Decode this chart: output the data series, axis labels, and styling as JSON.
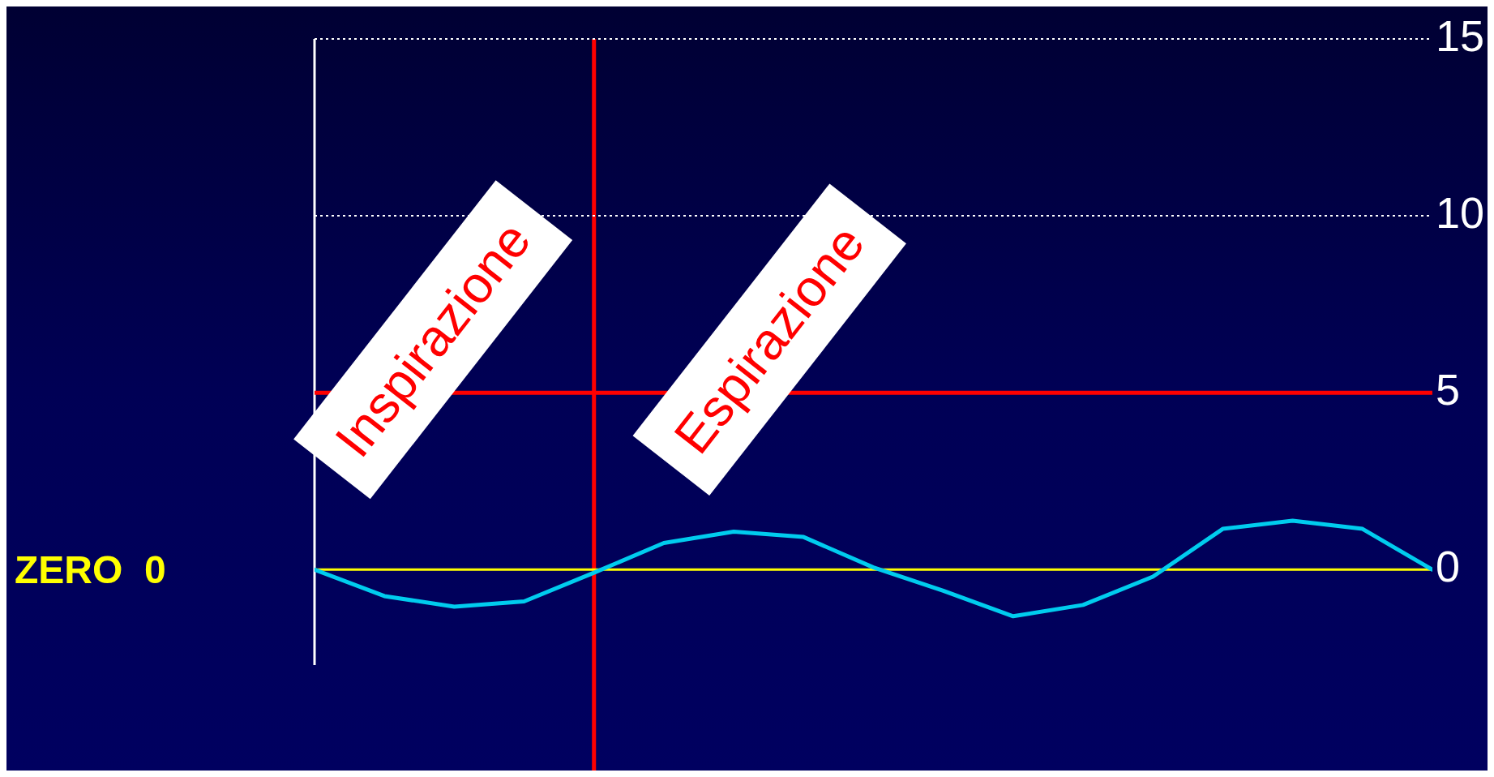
{
  "chart_data": {
    "type": "line",
    "categories": [
      null,
      null,
      null,
      null,
      null,
      null,
      null,
      null,
      null,
      null,
      null,
      null,
      null,
      null,
      null,
      null,
      null
    ],
    "series": [
      {
        "color": "#00ccee",
        "values": [
          0,
          -0.75,
          -1.05,
          -0.9,
          -0.09,
          0.75,
          1.07,
          0.92,
          0.06,
          -0.6,
          -1.32,
          -1.0,
          -0.2,
          1.15,
          1.38,
          1.15,
          0
        ]
      }
    ],
    "ylim": [
      -2.7,
      15
    ],
    "yticks": [
      0,
      5,
      10,
      15
    ],
    "tick_labels": "y",
    "legend": false,
    "marker": "none",
    "line_style": "solid",
    "ref_lines": [
      {
        "axis": "y",
        "value": 0,
        "label": "ZERO  0",
        "color": "#ffff00"
      },
      {
        "axis": "y",
        "value": 5,
        "color": "#ff0000"
      },
      {
        "axis": "y",
        "value": 10,
        "color": "#ffffff",
        "line_style": "dotted"
      },
      {
        "axis": "y",
        "value": 15,
        "color": "#ffffff",
        "line_style": "dotted"
      }
    ],
    "annotations": [
      "Inspirazione",
      "Espirazione"
    ]
  }
}
